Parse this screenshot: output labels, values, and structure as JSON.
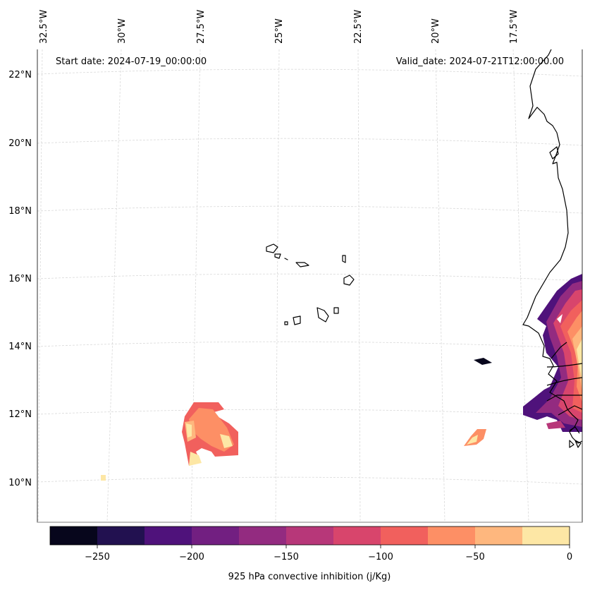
{
  "header": {
    "start_date": "Start date: 2024-07-19_00:00:00",
    "valid_date": "Valid_date: 2024-07-21T12:00:00.00"
  },
  "axes": {
    "longitude_labels": [
      "32.5°W",
      "30°W",
      "27.5°W",
      "25°W",
      "22.5°W",
      "20°W",
      "17.5°W"
    ],
    "latitude_labels": [
      "22°N",
      "20°N",
      "18°N",
      "16°N",
      "14°N",
      "12°N",
      "10°N"
    ]
  },
  "colorbar": {
    "label": "925 hPa convective inhibition (j/Kg)",
    "tick_labels": [
      "−250",
      "−200",
      "−150",
      "−100",
      "−50",
      "0"
    ],
    "colors": [
      "#07061c",
      "#221150",
      "#4f127b",
      "#721f81",
      "#932b80",
      "#b73779",
      "#d8456c",
      "#f1605d",
      "#fd8f65",
      "#feb77e",
      "#fde7a5"
    ]
  },
  "colors": {
    "grid": "#d9d9d9",
    "coastline": "#000000"
  }
}
